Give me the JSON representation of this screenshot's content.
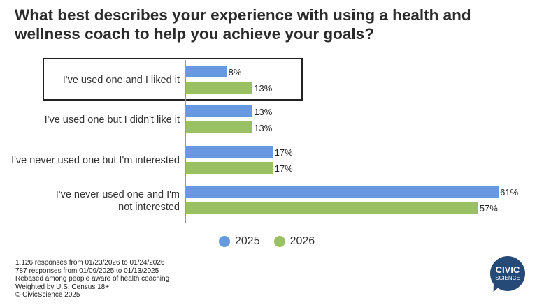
{
  "title": "What best describes your experience with using a health and wellness coach to help you achieve your goals?",
  "chart_data": {
    "type": "bar",
    "orientation": "horizontal",
    "categories": [
      "I've used one and I liked it",
      "I've used one but I didn't like it",
      "I've never used one but I'm interested",
      "I've never used one and I'm not interested"
    ],
    "series": [
      {
        "name": "2025",
        "color": "#6699e0",
        "values": [
          8,
          13,
          17,
          61
        ]
      },
      {
        "name": "2026",
        "color": "#99c062",
        "values": [
          13,
          13,
          17,
          57
        ]
      }
    ],
    "value_suffix": "%",
    "highlighted_category": "I've used one and I liked it",
    "legend": "bottom"
  },
  "notes": [
    "1,126 responses from 01/23/2026 to 01/24/2026",
    "787 responses from 01/09/2025 to 01/13/2025",
    "Rebased among people aware of health coaching",
    "Weighted by U.S. Census 18+",
    "© CivicScience 2025"
  ],
  "logo": {
    "line1": "CIVIC",
    "line2": "SCIENCE",
    "color": "#264a78"
  }
}
